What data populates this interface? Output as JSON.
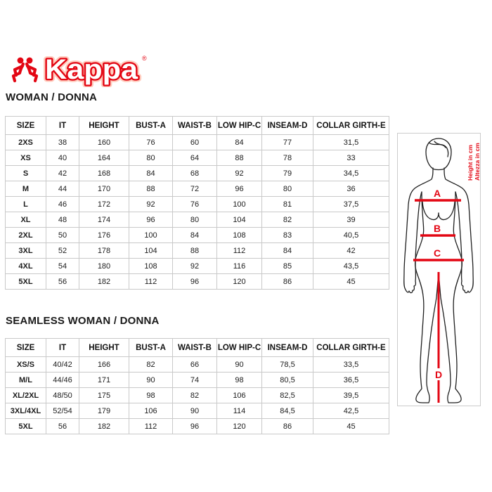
{
  "brand": {
    "name": "Kappa",
    "registered": "®"
  },
  "colors": {
    "accent_red": "#e30613",
    "table_border": "#c9c9c9",
    "text": "#111111"
  },
  "woman": {
    "title": "WOMAN / DONNA",
    "headers": [
      "SIZE",
      "IT",
      "HEIGHT",
      "BUST-A",
      "WAIST-B",
      "LOW HIP-C",
      "INSEAM-D",
      "COLLAR GIRTH-E"
    ],
    "rows": [
      [
        "2XS",
        "38",
        "160",
        "76",
        "60",
        "84",
        "77",
        "31,5"
      ],
      [
        "XS",
        "40",
        "164",
        "80",
        "64",
        "88",
        "78",
        "33"
      ],
      [
        "S",
        "42",
        "168",
        "84",
        "68",
        "92",
        "79",
        "34,5"
      ],
      [
        "M",
        "44",
        "170",
        "88",
        "72",
        "96",
        "80",
        "36"
      ],
      [
        "L",
        "46",
        "172",
        "92",
        "76",
        "100",
        "81",
        "37,5"
      ],
      [
        "XL",
        "48",
        "174",
        "96",
        "80",
        "104",
        "82",
        "39"
      ],
      [
        "2XL",
        "50",
        "176",
        "100",
        "84",
        "108",
        "83",
        "40,5"
      ],
      [
        "3XL",
        "52",
        "178",
        "104",
        "88",
        "112",
        "84",
        "42"
      ],
      [
        "4XL",
        "54",
        "180",
        "108",
        "92",
        "116",
        "85",
        "43,5"
      ],
      [
        "5XL",
        "56",
        "182",
        "112",
        "96",
        "120",
        "86",
        "45"
      ]
    ]
  },
  "seamless": {
    "title": "SEAMLESS WOMAN / DONNA",
    "headers": [
      "SIZE",
      "IT",
      "HEIGHT",
      "BUST-A",
      "WAIST-B",
      "LOW HIP-C",
      "INSEAM-D",
      "COLLAR GIRTH-E"
    ],
    "rows": [
      [
        "XS/S",
        "40/42",
        "166",
        "82",
        "66",
        "90",
        "78,5",
        "33,5"
      ],
      [
        "M/L",
        "44/46",
        "171",
        "90",
        "74",
        "98",
        "80,5",
        "36,5"
      ],
      [
        "XL/2XL",
        "48/50",
        "175",
        "98",
        "82",
        "106",
        "82,5",
        "39,5"
      ],
      [
        "3XL/4XL",
        "52/54",
        "179",
        "106",
        "90",
        "114",
        "84,5",
        "42,5"
      ],
      [
        "5XL",
        "56",
        "182",
        "112",
        "96",
        "120",
        "86",
        "45"
      ]
    ]
  },
  "figure": {
    "bust_label": "A",
    "waist_label": "B",
    "hip_label": "C",
    "inseam_label": "D",
    "height_label_en": "Height in cm",
    "height_label_it": "Altezza in cm"
  }
}
